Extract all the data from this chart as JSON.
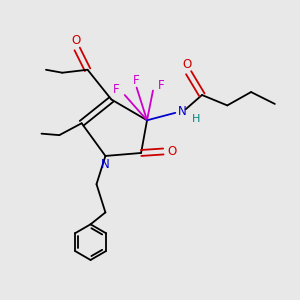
{
  "bg_color": "#e8e8e8",
  "atom_colors": {
    "C": "#000000",
    "N_ring": "#0000cc",
    "N_amide": "#0000cc",
    "O": "#cc0000",
    "F": "#cc00cc",
    "H": "#008888"
  }
}
